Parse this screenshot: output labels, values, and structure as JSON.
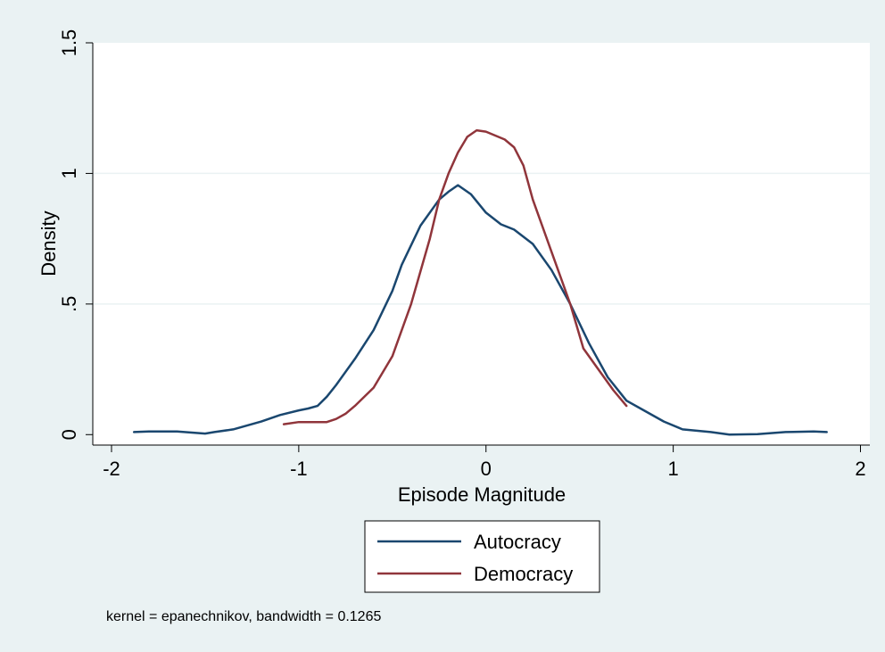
{
  "chart_data": {
    "type": "line",
    "title": "",
    "xlabel": "Episode Magnitude",
    "ylabel": "Density",
    "xlim": [
      -2.1,
      2.05
    ],
    "ylim": [
      -0.04,
      1.5
    ],
    "x_ticks": [
      -2,
      -1,
      0,
      1,
      2
    ],
    "x_tick_labels": [
      "-2",
      "-1",
      "0",
      "1",
      "2"
    ],
    "y_ticks": [
      0,
      0.5,
      1,
      1.5
    ],
    "y_tick_labels": [
      "0",
      ".5",
      "1",
      "1.5"
    ],
    "grid": true,
    "legend_position": "bottom-center",
    "note": "kernel = epanechnikov, bandwidth = 0.1265",
    "colors": {
      "background": "#eaf2f3",
      "plot_area": "#ffffff",
      "grid": "#eaf2f3",
      "Autocracy": "#1a476f",
      "Democracy": "#90353b"
    },
    "series": [
      {
        "name": "Autocracy",
        "points": [
          [
            -1.88,
            0.01
          ],
          [
            -1.8,
            0.012
          ],
          [
            -1.65,
            0.012
          ],
          [
            -1.5,
            0.004
          ],
          [
            -1.45,
            0.01
          ],
          [
            -1.35,
            0.02
          ],
          [
            -1.2,
            0.05
          ],
          [
            -1.1,
            0.075
          ],
          [
            -1.0,
            0.093
          ],
          [
            -0.95,
            0.1
          ],
          [
            -0.9,
            0.11
          ],
          [
            -0.85,
            0.145
          ],
          [
            -0.8,
            0.19
          ],
          [
            -0.7,
            0.29
          ],
          [
            -0.6,
            0.4
          ],
          [
            -0.5,
            0.55
          ],
          [
            -0.45,
            0.65
          ],
          [
            -0.35,
            0.8
          ],
          [
            -0.25,
            0.9
          ],
          [
            -0.2,
            0.93
          ],
          [
            -0.15,
            0.955
          ],
          [
            -0.08,
            0.92
          ],
          [
            0.0,
            0.85
          ],
          [
            0.08,
            0.805
          ],
          [
            0.15,
            0.785
          ],
          [
            0.25,
            0.73
          ],
          [
            0.35,
            0.63
          ],
          [
            0.45,
            0.5
          ],
          [
            0.55,
            0.35
          ],
          [
            0.65,
            0.22
          ],
          [
            0.75,
            0.13
          ],
          [
            0.85,
            0.09
          ],
          [
            0.95,
            0.05
          ],
          [
            1.05,
            0.02
          ],
          [
            1.2,
            0.01
          ],
          [
            1.3,
            0.0
          ],
          [
            1.45,
            0.002
          ],
          [
            1.6,
            0.01
          ],
          [
            1.75,
            0.012
          ],
          [
            1.82,
            0.01
          ]
        ]
      },
      {
        "name": "Democracy",
        "points": [
          [
            -1.08,
            0.04
          ],
          [
            -1.0,
            0.048
          ],
          [
            -0.9,
            0.048
          ],
          [
            -0.85,
            0.048
          ],
          [
            -0.8,
            0.06
          ],
          [
            -0.75,
            0.08
          ],
          [
            -0.7,
            0.11
          ],
          [
            -0.6,
            0.18
          ],
          [
            -0.5,
            0.3
          ],
          [
            -0.4,
            0.5
          ],
          [
            -0.3,
            0.75
          ],
          [
            -0.25,
            0.9
          ],
          [
            -0.2,
            1.0
          ],
          [
            -0.15,
            1.08
          ],
          [
            -0.1,
            1.14
          ],
          [
            -0.05,
            1.165
          ],
          [
            0.0,
            1.16
          ],
          [
            0.05,
            1.145
          ],
          [
            0.1,
            1.13
          ],
          [
            0.15,
            1.1
          ],
          [
            0.2,
            1.03
          ],
          [
            0.25,
            0.9
          ],
          [
            0.35,
            0.7
          ],
          [
            0.45,
            0.5
          ],
          [
            0.52,
            0.33
          ],
          [
            0.6,
            0.25
          ],
          [
            0.68,
            0.17
          ],
          [
            0.75,
            0.11
          ]
        ]
      }
    ]
  }
}
